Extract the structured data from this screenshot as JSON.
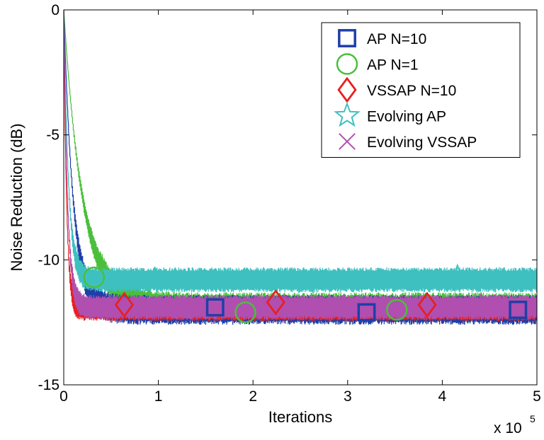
{
  "chart_data": {
    "type": "line",
    "title": "",
    "xlabel": "Iterations",
    "ylabel": "Noise Reduction (dB)",
    "x_multiplier_label": "x 10",
    "x_multiplier_exponent": "5",
    "xlim": [
      0,
      5
    ],
    "ylim": [
      -15,
      0
    ],
    "x_ticks": [
      0,
      1,
      2,
      3,
      4,
      5
    ],
    "x_tick_labels": [
      "0",
      "1",
      "2",
      "3",
      "4",
      "5"
    ],
    "y_ticks": [
      0,
      -5,
      -10,
      -15
    ],
    "y_tick_labels": [
      "0",
      "-5",
      "-10",
      "-15"
    ],
    "grid": false,
    "legend_position": "top-right",
    "x_unit_note": "x in units of 10^5 iterations",
    "series": [
      {
        "name": "AP N=10",
        "color": "#1f3fa8",
        "marker": "square",
        "steady_state_db": -12.0,
        "band_db": [
          -12.6,
          -11.4
        ],
        "time_constant": 0.1,
        "markers_x": [
          1.6,
          3.2,
          4.8
        ],
        "markers_y": [
          -11.9,
          -12.1,
          -12.0
        ]
      },
      {
        "name": "AP N=1",
        "color": "#4bbf3c",
        "marker": "circle",
        "steady_state_db": -11.9,
        "band_db": [
          -12.5,
          -11.3
        ],
        "time_constant": 0.2,
        "markers_x": [
          0.32,
          1.92,
          3.52
        ],
        "markers_y": [
          -10.7,
          -12.1,
          -12.0
        ]
      },
      {
        "name": "VSSAP N=10",
        "color": "#e8201f",
        "marker": "diamond",
        "steady_state_db": -12.0,
        "band_db": [
          -12.4,
          -11.5
        ],
        "time_constant": 0.03,
        "markers_x": [
          0.64,
          2.24,
          3.84
        ],
        "markers_y": [
          -11.8,
          -11.7,
          -11.8
        ]
      },
      {
        "name": "Evolving AP",
        "color": "#3fc0c0",
        "marker": "star",
        "steady_state_db": -10.8,
        "band_db": [
          -11.3,
          -10.3
        ],
        "time_constant": 0.05,
        "markers_x": [
          0.96,
          2.56,
          4.16
        ],
        "markers_y": [
          -10.8,
          -10.9,
          -10.7
        ]
      },
      {
        "name": "Evolving VSSAP",
        "color": "#b04fb0",
        "marker": "x",
        "steady_state_db": -11.9,
        "band_db": [
          -12.4,
          -11.4
        ],
        "time_constant": 0.04,
        "markers_x": [
          1.28,
          2.88,
          4.48
        ],
        "markers_y": [
          -11.9,
          -11.7,
          -11.7
        ]
      }
    ]
  }
}
